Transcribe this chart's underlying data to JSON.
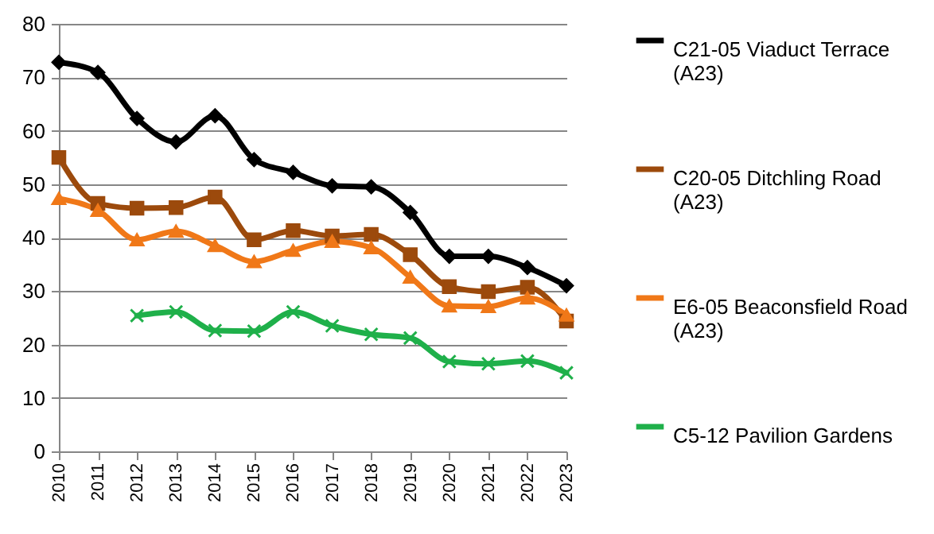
{
  "chart_data": {
    "type": "line",
    "categories": [
      "2010",
      "2011",
      "2012",
      "2013",
      "2014",
      "2015",
      "2016",
      "2017",
      "2018",
      "2019",
      "2020",
      "2021",
      "2022",
      "2023"
    ],
    "series": [
      {
        "name": "C21-05 Viaduct Terrace (A23)",
        "color": "#000000",
        "marker": "diamond",
        "values": [
          72.8,
          70.9,
          62.3,
          57.9,
          62.8,
          54.6,
          52.2,
          49.7,
          49.5,
          44.7,
          36.5,
          36.5,
          34.4,
          31.0
        ]
      },
      {
        "name": "C20-05 Ditchling Road (A23)",
        "color": "#9c4a0c",
        "marker": "square",
        "values": [
          55.0,
          46.4,
          45.5,
          45.6,
          47.6,
          39.6,
          41.3,
          40.3,
          40.6,
          36.8,
          30.8,
          29.9,
          30.7,
          24.4
        ]
      },
      {
        "name": "E6-05 Beaconsfield Road (A23)",
        "color": "#f07818",
        "marker": "triangle",
        "values": [
          47.3,
          45.1,
          39.6,
          41.2,
          38.5,
          35.5,
          37.6,
          39.3,
          38.1,
          32.6,
          27.2,
          27.1,
          28.7,
          25.5
        ]
      },
      {
        "name": "C5-12 Pavilion Gardens",
        "color": "#1fb04a",
        "marker": "cross",
        "values": [
          null,
          null,
          25.4,
          26.1,
          22.6,
          22.5,
          26.1,
          23.5,
          21.9,
          21.2,
          16.8,
          16.4,
          16.9,
          14.7
        ]
      }
    ],
    "ylim": [
      0,
      80
    ],
    "yticks": [
      0,
      10,
      20,
      30,
      40,
      50,
      60,
      70,
      80
    ],
    "grid": "y",
    "legend": "right"
  }
}
